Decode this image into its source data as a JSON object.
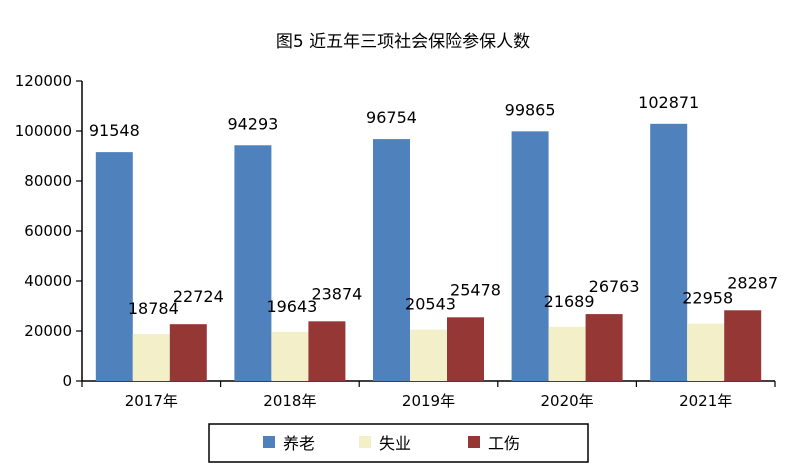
{
  "chart_data": {
    "type": "bar",
    "title": "图5  近五年三项社会保险参保人数",
    "xlabel": "",
    "ylabel": "",
    "categories": [
      "2017年",
      "2018年",
      "2019年",
      "2020年",
      "2021年"
    ],
    "ylim": [
      0,
      120000
    ],
    "yticks": [
      "0",
      "20000",
      "40000",
      "60000",
      "80000",
      "100000",
      "120000"
    ],
    "grid": false,
    "legend_position": "bottom",
    "series": [
      {
        "name": "养老",
        "color": "#4f81bd",
        "values": [
          91548,
          94293,
          96754,
          99865,
          102871
        ]
      },
      {
        "name": "失业",
        "color": "#f3f0c9",
        "values": [
          18784,
          19643,
          20543,
          21689,
          22958
        ]
      },
      {
        "name": "工伤",
        "color": "#953735",
        "values": [
          22724,
          23874,
          25478,
          26763,
          28287
        ]
      }
    ]
  }
}
